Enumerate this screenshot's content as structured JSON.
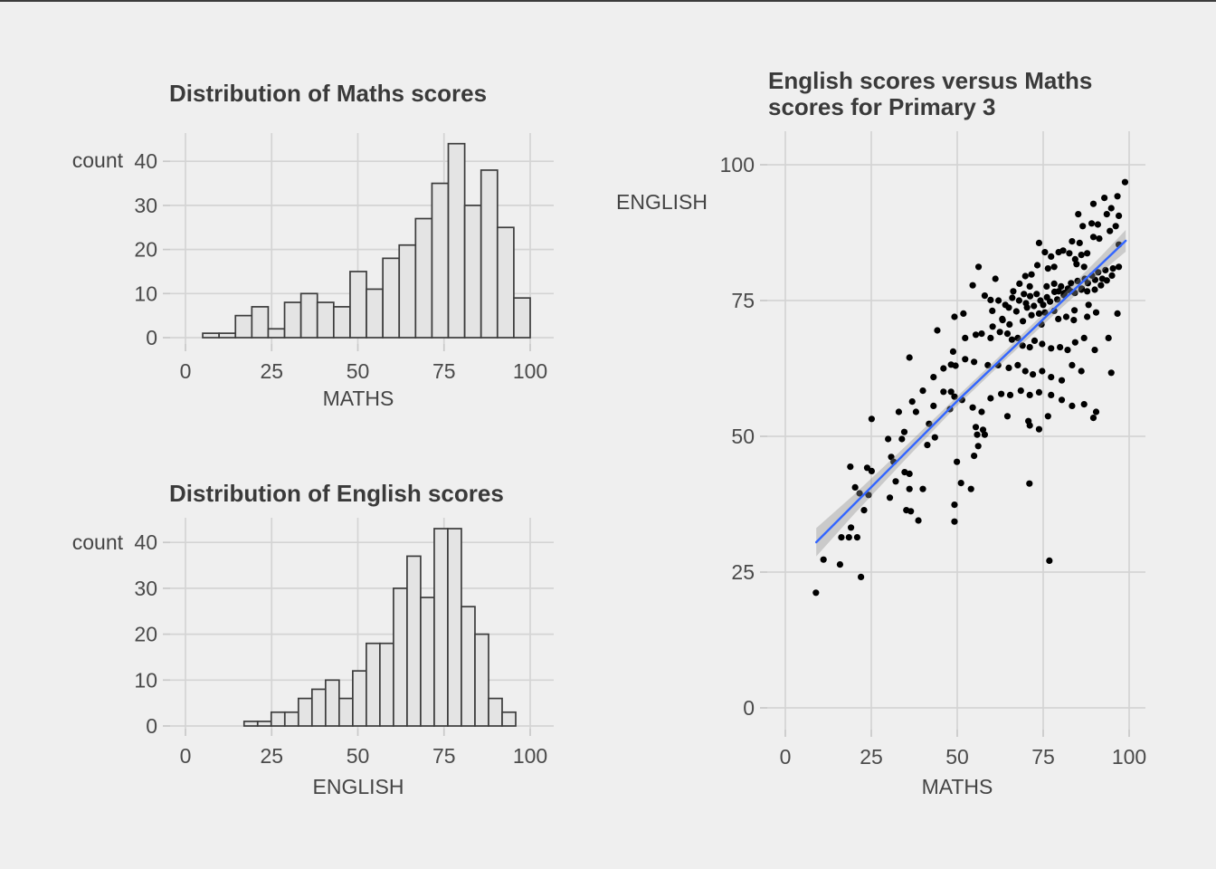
{
  "figure": {
    "background": "#efefef",
    "top_border_color": "#3c3c3c",
    "text_color": "#3a3a3a",
    "tick_label_color": "#4a4a4a",
    "gridline_color": "#d4d4d4",
    "tick_mark_color": "#c9c9c9"
  },
  "chart_data": [
    {
      "id": "maths-histogram",
      "type": "bar",
      "title": "Distribution of Maths scores",
      "xlabel": "MATHS",
      "ylabel": "count",
      "x_ticks": [
        0,
        25,
        50,
        75,
        100
      ],
      "y_ticks": [
        0,
        10,
        20,
        30,
        40
      ],
      "xlim": [
        0,
        100
      ],
      "ylim": [
        0,
        45
      ],
      "grid": true,
      "legend": "none",
      "bins": {
        "start": 5,
        "width": 4.75
      },
      "counts": [
        1,
        1,
        5,
        7,
        2,
        8,
        10,
        8,
        7,
        15,
        11,
        18,
        21,
        27,
        35,
        44,
        30,
        38,
        25,
        9
      ],
      "bar_fill": "#e4e4e4",
      "bar_stroke": "#3c3c3c"
    },
    {
      "id": "english-histogram",
      "type": "bar",
      "title": "Distribution of English scores",
      "xlabel": "ENGLISH",
      "ylabel": "count",
      "x_ticks": [
        0,
        25,
        50,
        75,
        100
      ],
      "y_ticks": [
        0,
        10,
        20,
        30,
        40
      ],
      "xlim": [
        0,
        100
      ],
      "ylim": [
        0,
        43
      ],
      "grid": true,
      "legend": "none",
      "bins": {
        "start": 17,
        "width": 3.94
      },
      "counts": [
        1,
        1,
        3,
        3,
        6,
        8,
        10,
        6,
        12,
        18,
        18,
        30,
        37,
        28,
        43,
        43,
        26,
        20,
        6,
        3
      ],
      "bar_fill": "#e4e4e4",
      "bar_stroke": "#3c3c3c"
    },
    {
      "id": "scatter-plot",
      "type": "scatter",
      "title": "English scores versus Maths scores for Primary 3",
      "title_lines": [
        "English scores versus Maths",
        "scores for Primary 3"
      ],
      "xlabel": "MATHS",
      "ylabel": "ENGLISH",
      "x_ticks": [
        0,
        25,
        50,
        75,
        100
      ],
      "y_ticks": [
        0,
        25,
        50,
        75,
        100
      ],
      "xlim": [
        0,
        100
      ],
      "ylim": [
        0,
        100
      ],
      "grid": true,
      "legend": "none",
      "point_color": "#000000",
      "smooth_line": {
        "color": "#3366ff",
        "points": [
          [
            9,
            30.5
          ],
          [
            50,
            56.5
          ],
          [
            99,
            86
          ]
        ]
      },
      "ci_band": {
        "color": "#8f8f8f",
        "opacity": 0.38,
        "stations": [
          [
            9,
            2.6
          ],
          [
            20,
            1.8
          ],
          [
            35,
            1.2
          ],
          [
            50,
            0.85
          ],
          [
            65,
            0.85
          ],
          [
            80,
            1.1
          ],
          [
            92,
            1.5
          ],
          [
            99,
            2.0
          ]
        ]
      },
      "points": [
        [
          44.2,
          69.5
        ],
        [
          36.1,
          64.5
        ],
        [
          48.8,
          65.6
        ],
        [
          46,
          62.5
        ],
        [
          48.2,
          63.2
        ],
        [
          49.5,
          63
        ],
        [
          43.1,
          60.9
        ],
        [
          40,
          58.4
        ],
        [
          46,
          58.2
        ],
        [
          48.2,
          58.2
        ],
        [
          49.2,
          57.3
        ],
        [
          43.1,
          55.6
        ],
        [
          36.9,
          56.4
        ],
        [
          33,
          54.5
        ],
        [
          38,
          54.5
        ],
        [
          25.1,
          53.2
        ],
        [
          41.8,
          52.3
        ],
        [
          47.9,
          55
        ],
        [
          98.8,
          96.8
        ],
        [
          89.6,
          92.8
        ],
        [
          92.8,
          93.9
        ],
        [
          96.6,
          94.2
        ],
        [
          94.8,
          92
        ],
        [
          97,
          90.6
        ],
        [
          93.5,
          90.9
        ],
        [
          85.2,
          90.9
        ],
        [
          86.5,
          88.7
        ],
        [
          89.1,
          89.2
        ],
        [
          90.9,
          89
        ],
        [
          96.1,
          88.7
        ],
        [
          94.4,
          87.8
        ],
        [
          89.6,
          86.7
        ],
        [
          91.3,
          86.4
        ],
        [
          73.8,
          85.6
        ],
        [
          83.4,
          85.9
        ],
        [
          85.6,
          85.6
        ],
        [
          97,
          85.3
        ],
        [
          75.5,
          83.9
        ],
        [
          77.3,
          83.1
        ],
        [
          79.5,
          83.9
        ],
        [
          80.8,
          84.2
        ],
        [
          82.6,
          83.7
        ],
        [
          84.3,
          82.6
        ],
        [
          86.1,
          83.4
        ],
        [
          87.8,
          83.7
        ],
        [
          84.7,
          81.7
        ],
        [
          86.9,
          81.2
        ],
        [
          78.2,
          81.2
        ],
        [
          76.4,
          80.9
        ],
        [
          73.3,
          81.5
        ],
        [
          71.6,
          79.8
        ],
        [
          69.8,
          79.5
        ],
        [
          56.2,
          81.2
        ],
        [
          61.1,
          79
        ],
        [
          54.5,
          77.8
        ],
        [
          58,
          75.9
        ],
        [
          59.7,
          75.1
        ],
        [
          66.3,
          76.7
        ],
        [
          68.1,
          78.1
        ],
        [
          69.4,
          76.2
        ],
        [
          71.1,
          77.6
        ],
        [
          76,
          77.6
        ],
        [
          78.2,
          78.1
        ],
        [
          79.5,
          76.7
        ],
        [
          81.2,
          76.4
        ],
        [
          83,
          76.7
        ],
        [
          86.1,
          77
        ],
        [
          87.8,
          76.7
        ],
        [
          90,
          77
        ],
        [
          91.8,
          77.8
        ],
        [
          93.5,
          78.7
        ],
        [
          95.3,
          80.9
        ],
        [
          97,
          81.2
        ],
        [
          51.8,
          72.6
        ],
        [
          60.2,
          73.1
        ],
        [
          63.2,
          71.4
        ],
        [
          65,
          73.7
        ],
        [
          70.3,
          73.7
        ],
        [
          71.6,
          72.3
        ],
        [
          73.8,
          72.6
        ],
        [
          75.5,
          72.8
        ],
        [
          78.2,
          73.1
        ],
        [
          81.7,
          72
        ],
        [
          83.9,
          71.4
        ],
        [
          87.8,
          72
        ],
        [
          90.4,
          72.8
        ],
        [
          96.6,
          72.6
        ],
        [
          49.2,
          72
        ],
        [
          52.3,
          68.1
        ],
        [
          55.4,
          68.7
        ],
        [
          57.1,
          68.9
        ],
        [
          59.7,
          68.1
        ],
        [
          62.4,
          69.2
        ],
        [
          64.6,
          68.9
        ],
        [
          65.9,
          67.8
        ],
        [
          67.6,
          68.1
        ],
        [
          69,
          66.7
        ],
        [
          71.1,
          66.4
        ],
        [
          72.5,
          67.6
        ],
        [
          74.7,
          67
        ],
        [
          77.3,
          66.2
        ],
        [
          79.9,
          66.4
        ],
        [
          82.1,
          65.9
        ],
        [
          84.3,
          67.3
        ],
        [
          86.9,
          68.1
        ],
        [
          90,
          65.9
        ],
        [
          94,
          68.1
        ],
        [
          52.3,
          64.2
        ],
        [
          54.9,
          63.7
        ],
        [
          58.9,
          63.1
        ],
        [
          61.9,
          63.1
        ],
        [
          65,
          62.6
        ],
        [
          67.6,
          63.1
        ],
        [
          69.8,
          62
        ],
        [
          72,
          61.4
        ],
        [
          74.7,
          62
        ],
        [
          77.3,
          60.9
        ],
        [
          80.4,
          60.3
        ],
        [
          83.4,
          63.1
        ],
        [
          86.1,
          62
        ],
        [
          94.8,
          61.7
        ],
        [
          51.4,
          56.7
        ],
        [
          54.5,
          55.3
        ],
        [
          57.1,
          54.5
        ],
        [
          59.7,
          57
        ],
        [
          62.8,
          57.8
        ],
        [
          65.4,
          57.6
        ],
        [
          68.5,
          58.4
        ],
        [
          71.1,
          57.6
        ],
        [
          73.8,
          58.1
        ],
        [
          77.3,
          57.6
        ],
        [
          80.4,
          56.7
        ],
        [
          83.4,
          55.6
        ],
        [
          86.9,
          55.9
        ],
        [
          90.4,
          54.5
        ],
        [
          64.6,
          53.7
        ],
        [
          70.7,
          52.8
        ],
        [
          76.4,
          53.7
        ],
        [
          89.6,
          53.4
        ],
        [
          18.9,
          44.4
        ],
        [
          23.8,
          44.2
        ],
        [
          25.1,
          43.6
        ],
        [
          34.6,
          50.8
        ],
        [
          29.9,
          49.5
        ],
        [
          33.9,
          49.5
        ],
        [
          41.3,
          48.4
        ],
        [
          43.5,
          49.8
        ],
        [
          30.8,
          46.2
        ],
        [
          31.5,
          45.3
        ],
        [
          34.7,
          43.4
        ],
        [
          36.1,
          43.1
        ],
        [
          32.1,
          41.7
        ],
        [
          36.1,
          40.3
        ],
        [
          40,
          40.3
        ],
        [
          20.3,
          40.6
        ],
        [
          21.6,
          39.5
        ],
        [
          24.2,
          39.2
        ],
        [
          30.4,
          38.7
        ],
        [
          35.2,
          36.4
        ],
        [
          36.5,
          36.2
        ],
        [
          38.7,
          34.5
        ],
        [
          22.9,
          36.4
        ],
        [
          19.1,
          33.2
        ],
        [
          16.3,
          31.4
        ],
        [
          18.5,
          31.4
        ],
        [
          20.9,
          31.4
        ],
        [
          11.1,
          27.3
        ],
        [
          15.9,
          26.4
        ],
        [
          22,
          24.1
        ],
        [
          8.9,
          21.2
        ],
        [
          55.4,
          51.7
        ],
        [
          57.5,
          51.2
        ],
        [
          55.8,
          50.3
        ],
        [
          58,
          50.3
        ],
        [
          71.1,
          52
        ],
        [
          73.8,
          51.3
        ],
        [
          56.1,
          48.2
        ],
        [
          54.9,
          46.4
        ],
        [
          49.9,
          45.3
        ],
        [
          51.1,
          41.4
        ],
        [
          54,
          40.3
        ],
        [
          71,
          41.3
        ],
        [
          49.2,
          37.4
        ],
        [
          49.2,
          34.3
        ],
        [
          76.8,
          27.1
        ],
        [
          62,
          75
        ],
        [
          64,
          74.2
        ],
        [
          66,
          75.5
        ],
        [
          67.2,
          73
        ],
        [
          68,
          75
        ],
        [
          70,
          74.5
        ],
        [
          71.2,
          75.8
        ],
        [
          72.3,
          74
        ],
        [
          73.1,
          76.2
        ],
        [
          74.2,
          75
        ],
        [
          75,
          74.2
        ],
        [
          76.1,
          75.6
        ],
        [
          77,
          74.8
        ],
        [
          78.3,
          76.6
        ],
        [
          79.1,
          75.2
        ],
        [
          80.2,
          77.6
        ],
        [
          81,
          76
        ],
        [
          82.2,
          77.2
        ],
        [
          83.1,
          78.2
        ],
        [
          84.2,
          76.4
        ],
        [
          85,
          78.6
        ],
        [
          86.2,
          77.2
        ],
        [
          87.1,
          79
        ],
        [
          88,
          78.2
        ],
        [
          89.2,
          79.6
        ],
        [
          90.1,
          78.8
        ],
        [
          91,
          80.2
        ],
        [
          92.2,
          79
        ],
        [
          93.1,
          80.6
        ],
        [
          95,
          79.6
        ],
        [
          60.3,
          70.2
        ],
        [
          63.1,
          71.6
        ],
        [
          65.2,
          70.6
        ],
        [
          69.1,
          71.2
        ],
        [
          74.5,
          70.6
        ],
        [
          79.4,
          71.6
        ],
        [
          84.1,
          73.2
        ],
        [
          88.2,
          74.2
        ]
      ]
    }
  ]
}
